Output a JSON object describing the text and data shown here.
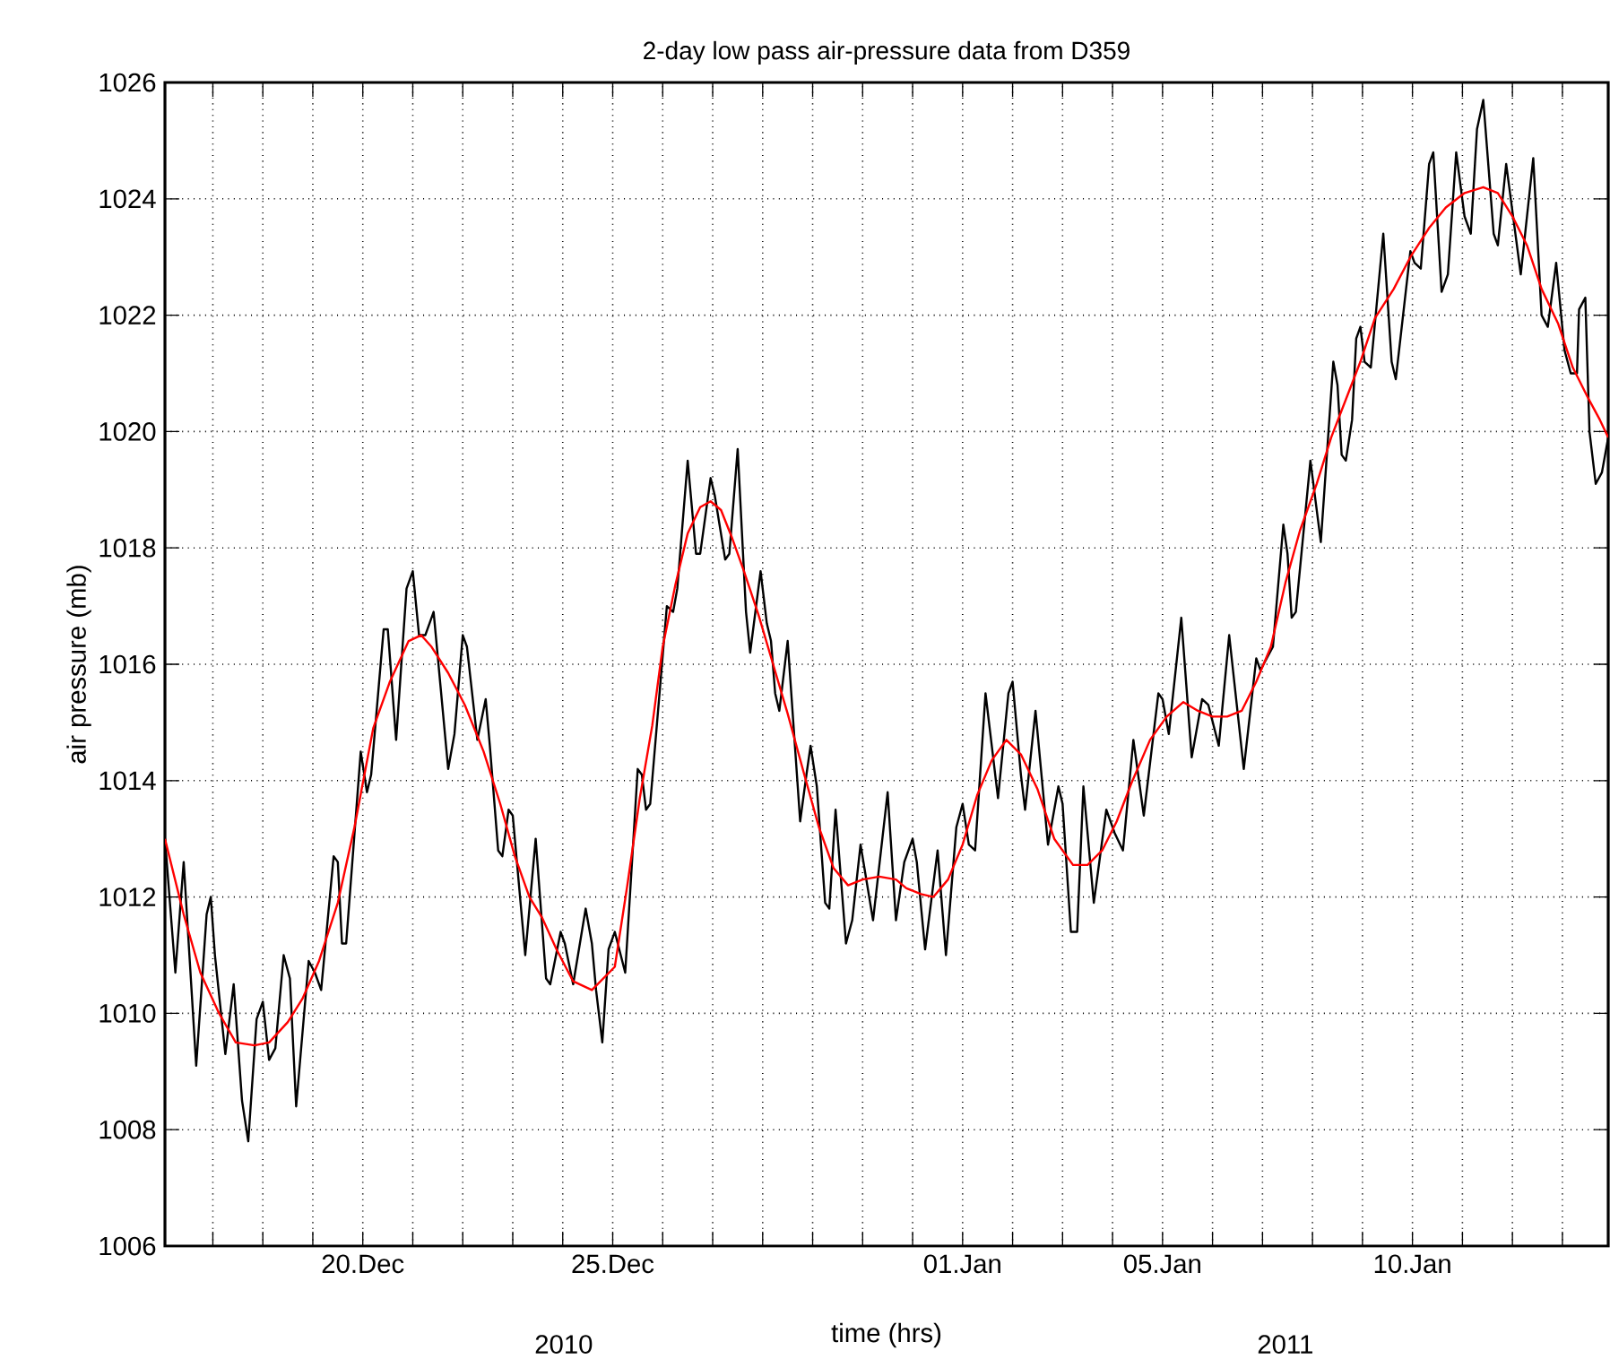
{
  "chart_data": {
    "type": "line",
    "title": "2-day low pass air-pressure data from D359",
    "xlabel": "time (hrs)",
    "ylabel": "air pressure (mb)",
    "xlim": [
      "2010-12-16T01:00",
      "2011-01-13T22:00"
    ],
    "ylim": [
      1006,
      1026
    ],
    "xticks": [
      {
        "value": "2010-12-17",
        "label": null
      },
      {
        "value": "2010-12-18",
        "label": null
      },
      {
        "value": "2010-12-19",
        "label": null
      },
      {
        "value": "2010-12-20",
        "label": "20.Dec"
      },
      {
        "value": "2010-12-21",
        "label": null
      },
      {
        "value": "2010-12-22",
        "label": null
      },
      {
        "value": "2010-12-23",
        "label": null
      },
      {
        "value": "2010-12-24",
        "label": null
      },
      {
        "value": "2010-12-25",
        "label": "25.Dec"
      },
      {
        "value": "2010-12-26",
        "label": null
      },
      {
        "value": "2010-12-27",
        "label": null
      },
      {
        "value": "2010-12-28",
        "label": null
      },
      {
        "value": "2010-12-29",
        "label": null
      },
      {
        "value": "2010-12-30",
        "label": null
      },
      {
        "value": "2010-12-31",
        "label": null
      },
      {
        "value": "2011-01-01",
        "label": "01.Jan"
      },
      {
        "value": "2011-01-02",
        "label": null
      },
      {
        "value": "2011-01-03",
        "label": null
      },
      {
        "value": "2011-01-04",
        "label": null
      },
      {
        "value": "2011-01-05",
        "label": "05.Jan"
      },
      {
        "value": "2011-01-06",
        "label": null
      },
      {
        "value": "2011-01-07",
        "label": null
      },
      {
        "value": "2011-01-08",
        "label": null
      },
      {
        "value": "2011-01-09",
        "label": null
      },
      {
        "value": "2011-01-10",
        "label": "10.Jan"
      },
      {
        "value": "2011-01-11",
        "label": null
      },
      {
        "value": "2011-01-12",
        "label": null
      },
      {
        "value": "2011-01-13",
        "label": null
      }
    ],
    "yticks": [
      1006,
      1008,
      1010,
      1012,
      1014,
      1016,
      1018,
      1020,
      1022,
      1024,
      1026
    ],
    "grid": true,
    "marker": "none",
    "line_style": "solid",
    "annotations": [
      "2010",
      "2011"
    ],
    "series": [
      {
        "color": "#000000",
        "x": [
          "2010-12-16T01:00",
          "2010-12-16T06:00",
          "2010-12-16T10:00",
          "2010-12-16T16:00",
          "2010-12-16T21:00",
          "2010-12-16T23:00",
          "2010-12-17T01:00",
          "2010-12-17T06:00",
          "2010-12-17T10:00",
          "2010-12-17T14:00",
          "2010-12-17T17:00",
          "2010-12-17T21:00",
          "2010-12-18T00:00",
          "2010-12-18T03:00",
          "2010-12-18T06:00",
          "2010-12-18T10:00",
          "2010-12-18T13:00",
          "2010-12-18T16:00",
          "2010-12-18T22:00",
          "2010-12-19T01:00",
          "2010-12-19T04:00",
          "2010-12-19T10:00",
          "2010-12-19T12:00",
          "2010-12-19T14:00",
          "2010-12-19T16:00",
          "2010-12-19T23:00",
          "2010-12-20T02:00",
          "2010-12-20T04:00",
          "2010-12-20T10:00",
          "2010-12-20T12:00",
          "2010-12-20T16:00",
          "2010-12-20T21:00",
          "2010-12-21T00:00",
          "2010-12-21T03:00",
          "2010-12-21T06:00",
          "2010-12-21T10:00",
          "2010-12-21T17:00",
          "2010-12-21T20:00",
          "2010-12-22T00:00",
          "2010-12-22T02:00",
          "2010-12-22T07:00",
          "2010-12-22T11:00",
          "2010-12-22T13:00",
          "2010-12-22T17:00",
          "2010-12-22T19:00",
          "2010-12-22T22:00",
          "2010-12-23T00:00",
          "2010-12-23T06:00",
          "2010-12-23T11:00",
          "2010-12-23T16:00",
          "2010-12-23T18:00",
          "2010-12-23T23:00",
          "2010-12-24T01:00",
          "2010-12-24T05:00",
          "2010-12-24T11:00",
          "2010-12-24T14:00",
          "2010-12-24T16:00",
          "2010-12-24T19:00",
          "2010-12-24T22:00",
          "2010-12-25T01:00",
          "2010-12-25T06:00",
          "2010-12-25T12:00",
          "2010-12-25T14:00",
          "2010-12-25T16:00",
          "2010-12-25T18:00",
          "2010-12-26T02:00",
          "2010-12-26T05:00",
          "2010-12-26T07:00",
          "2010-12-26T12:00",
          "2010-12-26T16:00",
          "2010-12-26T18:00",
          "2010-12-26T23:00",
          "2010-12-27T01:00",
          "2010-12-27T06:00",
          "2010-12-27T08:00",
          "2010-12-27T12:00",
          "2010-12-27T16:00",
          "2010-12-27T18:00",
          "2010-12-27T23:00",
          "2010-12-28T02:00",
          "2010-12-28T04:00",
          "2010-12-28T06:00",
          "2010-12-28T08:00",
          "2010-12-28T12:00",
          "2010-12-28T18:00",
          "2010-12-28T21:00",
          "2010-12-28T23:00",
          "2010-12-29T02:00",
          "2010-12-29T06:00",
          "2010-12-29T08:00",
          "2010-12-29T11:00",
          "2010-12-29T16:00",
          "2010-12-29T19:00",
          "2010-12-29T23:00",
          "2010-12-30T05:00",
          "2010-12-30T12:00",
          "2010-12-30T16:00",
          "2010-12-30T20:00",
          "2010-12-31T00:00",
          "2010-12-31T02:00",
          "2010-12-31T06:00",
          "2010-12-31T12:00",
          "2010-12-31T16:00",
          "2010-12-31T21:00",
          "2011-01-01T00:00",
          "2011-01-01T03:00",
          "2011-01-01T06:00",
          "2011-01-01T11:00",
          "2011-01-01T17:00",
          "2011-01-01T22:00",
          "2011-01-02T00:00",
          "2011-01-02T04:00",
          "2011-01-02T06:00",
          "2011-01-02T11:00",
          "2011-01-02T17:00",
          "2011-01-02T22:00",
          "2011-01-03T00:00",
          "2011-01-03T04:00",
          "2011-01-03T07:00",
          "2011-01-03T10:00",
          "2011-01-03T15:00",
          "2011-01-03T21:00",
          "2011-01-04T01:00",
          "2011-01-04T05:00",
          "2011-01-04T10:00",
          "2011-01-04T15:00",
          "2011-01-04T22:00",
          "2011-01-05T00:00",
          "2011-01-05T03:00",
          "2011-01-05T09:00",
          "2011-01-05T14:00",
          "2011-01-05T19:00",
          "2011-01-05T22:00",
          "2011-01-06T03:00",
          "2011-01-06T08:00",
          "2011-01-06T15:00",
          "2011-01-06T21:00",
          "2011-01-06T23:00",
          "2011-01-07T05:00",
          "2011-01-07T10:00",
          "2011-01-07T12:00",
          "2011-01-07T14:00",
          "2011-01-07T16:00",
          "2011-01-07T23:00",
          "2011-01-08T04:00",
          "2011-01-08T10:00",
          "2011-01-08T12:00",
          "2011-01-08T14:00",
          "2011-01-08T16:00",
          "2011-01-08T19:00",
          "2011-01-08T21:00",
          "2011-01-08T23:00",
          "2011-01-09T01:00",
          "2011-01-09T04:00",
          "2011-01-09T10:00",
          "2011-01-09T14:00",
          "2011-01-09T16:00",
          "2011-01-09T23:00",
          "2011-01-10T01:00",
          "2011-01-10T04:00",
          "2011-01-10T08:00",
          "2011-01-10T10:00",
          "2011-01-10T14:00",
          "2011-01-10T17:00",
          "2011-01-10T21:00",
          "2011-01-11T01:00",
          "2011-01-11T04:00",
          "2011-01-11T07:00",
          "2011-01-11T10:00",
          "2011-01-11T15:00",
          "2011-01-11T17:00",
          "2011-01-11T21:00",
          "2011-01-12T04:00",
          "2011-01-12T10:00",
          "2011-01-12T14:00",
          "2011-01-12T17:00",
          "2011-01-12T21:00",
          "2011-01-13T01:00",
          "2011-01-13T04:00",
          "2011-01-13T07:00",
          "2011-01-13T08:00",
          "2011-01-13T11:00",
          "2011-01-13T13:00",
          "2011-01-13T16:00",
          "2011-01-13T19:00",
          "2011-01-13T22:00"
        ],
        "values": [
          1013.0,
          1010.7,
          1012.6,
          1009.1,
          1011.7,
          1012.0,
          1011.0,
          1009.3,
          1010.5,
          1008.5,
          1007.8,
          1009.9,
          1010.2,
          1009.2,
          1009.4,
          1011.0,
          1010.6,
          1008.4,
          1010.9,
          1010.7,
          1010.4,
          1012.7,
          1012.6,
          1011.2,
          1011.2,
          1014.5,
          1013.8,
          1014.1,
          1016.6,
          1016.6,
          1014.7,
          1017.3,
          1017.6,
          1016.5,
          1016.5,
          1016.9,
          1014.2,
          1014.8,
          1016.5,
          1016.3,
          1014.7,
          1015.4,
          1014.6,
          1012.8,
          1012.7,
          1013.5,
          1013.4,
          1011.0,
          1013.0,
          1010.6,
          1010.5,
          1011.4,
          1011.2,
          1010.5,
          1011.8,
          1011.2,
          1010.4,
          1009.5,
          1011.1,
          1011.4,
          1010.7,
          1014.2,
          1014.1,
          1013.5,
          1013.6,
          1017.0,
          1016.9,
          1017.3,
          1019.5,
          1017.9,
          1017.9,
          1019.2,
          1018.9,
          1017.8,
          1017.9,
          1019.7,
          1016.9,
          1016.2,
          1017.6,
          1016.7,
          1016.4,
          1015.5,
          1015.2,
          1016.4,
          1013.3,
          1014.1,
          1014.6,
          1013.9,
          1011.9,
          1011.8,
          1013.5,
          1011.2,
          1011.6,
          1012.9,
          1011.6,
          1013.8,
          1011.6,
          1012.6,
          1013.0,
          1012.6,
          1011.1,
          1012.8,
          1011.0,
          1013.2,
          1013.6,
          1012.9,
          1012.8,
          1015.5,
          1013.7,
          1015.5,
          1015.7,
          1014.1,
          1013.5,
          1015.2,
          1012.9,
          1013.9,
          1013.6,
          1011.4,
          1011.4,
          1013.9,
          1011.9,
          1013.5,
          1013.1,
          1012.8,
          1014.7,
          1013.4,
          1015.5,
          1015.4,
          1014.8,
          1016.8,
          1014.4,
          1015.4,
          1015.3,
          1014.6,
          1016.5,
          1014.2,
          1016.1,
          1015.9,
          1016.3,
          1018.4,
          1017.9,
          1016.8,
          1016.9,
          1019.5,
          1018.1,
          1021.2,
          1020.8,
          1019.6,
          1019.5,
          1020.2,
          1021.6,
          1021.8,
          1021.2,
          1021.1,
          1023.4,
          1021.2,
          1020.9,
          1023.1,
          1022.9,
          1022.8,
          1024.6,
          1024.8,
          1022.4,
          1022.7,
          1024.8,
          1023.7,
          1023.4,
          1025.2,
          1025.7,
          1023.4,
          1023.2,
          1024.6,
          1022.7,
          1024.7,
          1022.0,
          1021.8,
          1022.9,
          1021.4,
          1021.0,
          1021.0,
          1022.1,
          1022.3,
          1020.0,
          1019.1,
          1019.3,
          1019.9
        ]
      },
      {
        "color": "#ff0000",
        "x": [
          "2010-12-16T01:00",
          "2010-12-16T10:00",
          "2010-12-16T18:00",
          "2010-12-17T03:00",
          "2010-12-17T11:00",
          "2010-12-17T20:00",
          "2010-12-18T03:00",
          "2010-12-18T12:00",
          "2010-12-18T19:00",
          "2010-12-19T03:00",
          "2010-12-19T12:00",
          "2010-12-19T20:00",
          "2010-12-20T05:00",
          "2010-12-20T13:00",
          "2010-12-20T22:00",
          "2010-12-21T04:00",
          "2010-12-21T09:00",
          "2010-12-21T17:00",
          "2010-12-22T01:00",
          "2010-12-22T10:00",
          "2010-12-22T18:00",
          "2010-12-23T01:00",
          "2010-12-23T08:00",
          "2010-12-23T14:00",
          "2010-12-23T21:00",
          "2010-12-24T05:00",
          "2010-12-24T14:00",
          "2010-12-25T01:00",
          "2010-12-25T07:00",
          "2010-12-25T13:00",
          "2010-12-25T19:00",
          "2010-12-26T00:00",
          "2010-12-26T06:00",
          "2010-12-26T12:00",
          "2010-12-26T18:00",
          "2010-12-26T23:00",
          "2010-12-27T04:00",
          "2010-12-27T09:00",
          "2010-12-27T15:00",
          "2010-12-27T22:00",
          "2010-12-28T05:00",
          "2010-12-28T12:00",
          "2010-12-28T20:00",
          "2010-12-29T03:00",
          "2010-12-29T10:00",
          "2010-12-29T17:00",
          "2010-12-30T00:00",
          "2010-12-30T08:00",
          "2010-12-30T16:00",
          "2010-12-30T21:00",
          "2010-12-31T04:00",
          "2010-12-31T10:00",
          "2010-12-31T17:00",
          "2011-01-01T00:00",
          "2011-01-01T07:00",
          "2011-01-01T14:00",
          "2011-01-01T21:00",
          "2011-01-02T04:00",
          "2011-01-02T12:00",
          "2011-01-02T20:00",
          "2011-01-03T05:00",
          "2011-01-03T12:00",
          "2011-01-03T19:00",
          "2011-01-04T02:00",
          "2011-01-04T09:00",
          "2011-01-04T18:00",
          "2011-01-05T02:00",
          "2011-01-05T10:00",
          "2011-01-05T17:00",
          "2011-01-06T00:00",
          "2011-01-06T07:00",
          "2011-01-06T14:00",
          "2011-01-06T21:00",
          "2011-01-07T04:00",
          "2011-01-07T11:00",
          "2011-01-07T18:00",
          "2011-01-08T02:00",
          "2011-01-08T09:00",
          "2011-01-08T16:00",
          "2011-01-08T23:00",
          "2011-01-09T06:00",
          "2011-01-09T15:00",
          "2011-01-09T23:00",
          "2011-01-10T08:00",
          "2011-01-10T16:00",
          "2011-01-11T01:00",
          "2011-01-11T10:00",
          "2011-01-11T17:00",
          "2011-01-12T00:00",
          "2011-01-12T07:00",
          "2011-01-12T14:00",
          "2011-01-12T22:00",
          "2011-01-13T05:00",
          "2011-01-13T12:00",
          "2011-01-13T18:00",
          "2011-01-13T22:00"
        ],
        "values": [
          1013.0,
          1011.7,
          1010.7,
          1010.0,
          1009.5,
          1009.45,
          1009.5,
          1009.85,
          1010.25,
          1010.9,
          1011.9,
          1013.2,
          1014.9,
          1015.7,
          1016.4,
          1016.5,
          1016.3,
          1015.85,
          1015.3,
          1014.5,
          1013.6,
          1012.7,
          1012.0,
          1011.65,
          1011.1,
          1010.55,
          1010.4,
          1010.8,
          1012.2,
          1013.7,
          1014.95,
          1016.3,
          1017.35,
          1018.25,
          1018.7,
          1018.8,
          1018.65,
          1018.2,
          1017.6,
          1016.85,
          1016.0,
          1015.15,
          1014.1,
          1013.2,
          1012.5,
          1012.2,
          1012.3,
          1012.35,
          1012.3,
          1012.15,
          1012.05,
          1012.0,
          1012.3,
          1012.9,
          1013.75,
          1014.35,
          1014.7,
          1014.45,
          1013.85,
          1013.0,
          1012.55,
          1012.55,
          1012.8,
          1013.3,
          1013.95,
          1014.7,
          1015.1,
          1015.35,
          1015.2,
          1015.1,
          1015.1,
          1015.2,
          1015.7,
          1016.3,
          1017.4,
          1018.3,
          1019.1,
          1019.9,
          1020.55,
          1021.2,
          1021.95,
          1022.45,
          1023.0,
          1023.5,
          1023.85,
          1024.1,
          1024.2,
          1024.1,
          1023.7,
          1023.2,
          1022.45,
          1021.85,
          1021.1,
          1020.6,
          1020.2,
          1019.9
        ]
      }
    ]
  }
}
